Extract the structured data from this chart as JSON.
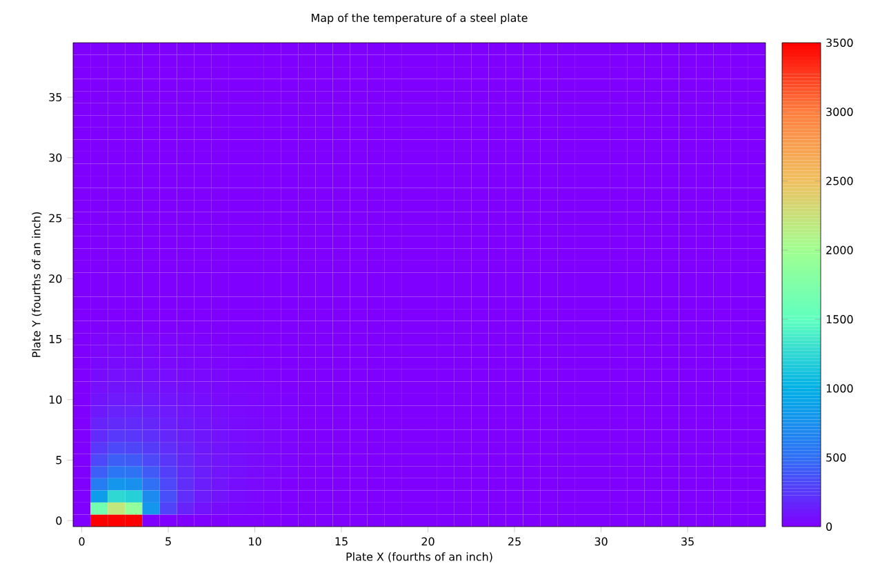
{
  "chart_data": {
    "type": "heatmap",
    "title": "Map of the temperature of a steel plate",
    "xlabel": "Plate X (fourths of an inch)",
    "ylabel": "Plate Y (fourths of an inch)",
    "categories": [
      "0",
      null,
      null,
      null,
      null,
      "5",
      null,
      null,
      null,
      null,
      "10",
      null,
      null,
      null,
      null,
      "15",
      null,
      null,
      null,
      null,
      "20",
      null,
      null,
      null,
      null,
      "25",
      null,
      null,
      null,
      null,
      "30",
      null,
      null,
      null,
      null,
      "35",
      null,
      null,
      null,
      null
    ],
    "y_categories": [
      null,
      null,
      null,
      null,
      "35",
      null,
      null,
      null,
      null,
      "30",
      null,
      null,
      null,
      null,
      "25",
      null,
      null,
      null,
      null,
      "20",
      null,
      null,
      null,
      null,
      "15",
      null,
      null,
      null,
      null,
      "10",
      null,
      null,
      null,
      null,
      "5",
      null,
      null,
      null,
      null,
      "0"
    ],
    "clim": [
      0,
      3500
    ],
    "cticks": [
      0,
      500,
      1000,
      1500,
      2000,
      2500,
      3000,
      3500
    ],
    "cells": [
      [
        0,
        0,
        0,
        0,
        0,
        0,
        0,
        0,
        0,
        0,
        0,
        0,
        0,
        0,
        0,
        0,
        0,
        0,
        0,
        0,
        0,
        0,
        0,
        0,
        0,
        0,
        0,
        0,
        0,
        0,
        0,
        0,
        0,
        0,
        0,
        0,
        0,
        0,
        0,
        0
      ],
      [
        0,
        0,
        0,
        0,
        0,
        0,
        0,
        0,
        0,
        0,
        0,
        0,
        0,
        0,
        0,
        0,
        0,
        0,
        0,
        0,
        0,
        0,
        0,
        0,
        0,
        0,
        0,
        0,
        0,
        0,
        0,
        0,
        0,
        0,
        0,
        0,
        0,
        0,
        0,
        0
      ],
      [
        0,
        0,
        0,
        0,
        0,
        0,
        0,
        0,
        0,
        0,
        0,
        0,
        0,
        0,
        0,
        0,
        0,
        0,
        0,
        0,
        0,
        0,
        0,
        0,
        0,
        0,
        0,
        0,
        0,
        0,
        0,
        0,
        0,
        0,
        0,
        0,
        0,
        0,
        0,
        0
      ],
      [
        0,
        0,
        0,
        0,
        0,
        0,
        0,
        0,
        0,
        0,
        0,
        0,
        0,
        0,
        0,
        0,
        0,
        0,
        0,
        0,
        0,
        0,
        0,
        0,
        0,
        0,
        0,
        0,
        0,
        0,
        0,
        0,
        0,
        0,
        0,
        0,
        0,
        0,
        0,
        0
      ],
      [
        0,
        0,
        0,
        0,
        0,
        0,
        0,
        0,
        0,
        0,
        0,
        0,
        0,
        0,
        0,
        0,
        0,
        0,
        0,
        0,
        0,
        0,
        0,
        0,
        0,
        0,
        0,
        0,
        0,
        0,
        0,
        0,
        0,
        0,
        0,
        0,
        0,
        0,
        0,
        0
      ],
      [
        0,
        0,
        0,
        0,
        0,
        0,
        0,
        0,
        0,
        0,
        0,
        0,
        0,
        0,
        0,
        0,
        0,
        0,
        0,
        0,
        0,
        0,
        0,
        0,
        0,
        0,
        0,
        0,
        0,
        0,
        0,
        0,
        0,
        0,
        0,
        0,
        0,
        0,
        0,
        0
      ],
      [
        0,
        0,
        0,
        0,
        0,
        0,
        0,
        0,
        0,
        0,
        0,
        0,
        0,
        0,
        0,
        0,
        0,
        0,
        0,
        0,
        0,
        0,
        0,
        0,
        0,
        0,
        0,
        0,
        0,
        0,
        0,
        0,
        0,
        0,
        0,
        0,
        0,
        0,
        0,
        0
      ],
      [
        0,
        0,
        0,
        0,
        0,
        0,
        0,
        0,
        0,
        0,
        0,
        0,
        0,
        0,
        0,
        0,
        0,
        0,
        0,
        0,
        0,
        0,
        0,
        0,
        0,
        0,
        0,
        0,
        0,
        0,
        0,
        0,
        0,
        0,
        0,
        0,
        0,
        0,
        0,
        0
      ],
      [
        0,
        0,
        0,
        0,
        0,
        0,
        0,
        0,
        0,
        0,
        0,
        0,
        0,
        0,
        0,
        0,
        0,
        0,
        0,
        0,
        0,
        0,
        0,
        0,
        0,
        0,
        0,
        0,
        0,
        0,
        0,
        0,
        0,
        0,
        0,
        0,
        0,
        0,
        0,
        0
      ],
      [
        0,
        0,
        0,
        0,
        0,
        0,
        0,
        0,
        0,
        0,
        0,
        0,
        0,
        0,
        0,
        0,
        0,
        0,
        0,
        0,
        0,
        0,
        0,
        0,
        0,
        0,
        0,
        0,
        0,
        0,
        0,
        0,
        0,
        0,
        0,
        0,
        0,
        0,
        0,
        0
      ],
      [
        0,
        0,
        0,
        0,
        0,
        0,
        0,
        0,
        0,
        0,
        0,
        0,
        0,
        0,
        0,
        0,
        0,
        0,
        0,
        0,
        0,
        0,
        0,
        0,
        0,
        0,
        0,
        0,
        0,
        0,
        0,
        0,
        0,
        0,
        0,
        0,
        0,
        0,
        0,
        0
      ],
      [
        0,
        0,
        0,
        0,
        0,
        0,
        0,
        0,
        0,
        0,
        0,
        0,
        0,
        0,
        0,
        0,
        0,
        0,
        0,
        0,
        0,
        0,
        0,
        0,
        0,
        0,
        0,
        0,
        0,
        0,
        0,
        0,
        0,
        0,
        0,
        0,
        0,
        0,
        0,
        0
      ],
      [
        0,
        0,
        0,
        0,
        0,
        0,
        0,
        0,
        0,
        0,
        0,
        0,
        0,
        0,
        0,
        0,
        0,
        0,
        0,
        0,
        0,
        0,
        0,
        0,
        0,
        0,
        0,
        0,
        0,
        0,
        0,
        0,
        0,
        0,
        0,
        0,
        0,
        0,
        0,
        0
      ],
      [
        0,
        0,
        0,
        0,
        0,
        0,
        0,
        0,
        0,
        0,
        0,
        0,
        0,
        0,
        0,
        0,
        0,
        0,
        0,
        0,
        0,
        0,
        0,
        0,
        0,
        0,
        0,
        0,
        0,
        0,
        0,
        0,
        0,
        0,
        0,
        0,
        0,
        0,
        0,
        0
      ],
      [
        0,
        0,
        0,
        0,
        0,
        0,
        0,
        0,
        0,
        0,
        0,
        0,
        0,
        0,
        0,
        0,
        0,
        0,
        0,
        0,
        0,
        0,
        0,
        0,
        0,
        0,
        0,
        0,
        0,
        0,
        0,
        0,
        0,
        0,
        0,
        0,
        0,
        0,
        0,
        0
      ],
      [
        0,
        0,
        0,
        0,
        0,
        0,
        0,
        0,
        0,
        0,
        0,
        0,
        0,
        0,
        0,
        0,
        0,
        0,
        0,
        0,
        0,
        0,
        0,
        0,
        0,
        0,
        0,
        0,
        0,
        0,
        0,
        0,
        0,
        0,
        0,
        0,
        0,
        0,
        0,
        0
      ],
      [
        0,
        0,
        0,
        0,
        0,
        0,
        0,
        0,
        0,
        0,
        0,
        0,
        0,
        0,
        0,
        0,
        0,
        0,
        0,
        0,
        0,
        0,
        0,
        0,
        0,
        0,
        0,
        0,
        0,
        0,
        0,
        0,
        0,
        0,
        0,
        0,
        0,
        0,
        0,
        0
      ],
      [
        0,
        0,
        0,
        0,
        0,
        0,
        0,
        0,
        0,
        0,
        0,
        0,
        0,
        0,
        0,
        0,
        0,
        0,
        0,
        0,
        0,
        0,
        0,
        0,
        0,
        0,
        0,
        0,
        0,
        0,
        0,
        0,
        0,
        0,
        0,
        0,
        0,
        0,
        0,
        0
      ],
      [
        0,
        0,
        0,
        0,
        0,
        0,
        0,
        0,
        0,
        0,
        0,
        0,
        0,
        0,
        0,
        0,
        0,
        0,
        0,
        0,
        0,
        0,
        0,
        0,
        0,
        0,
        0,
        0,
        0,
        0,
        0,
        0,
        0,
        0,
        0,
        0,
        0,
        0,
        0,
        0
      ],
      [
        0,
        0,
        0,
        0,
        0,
        0,
        0,
        0,
        0,
        0,
        0,
        0,
        0,
        0,
        0,
        0,
        0,
        0,
        0,
        0,
        0,
        0,
        0,
        0,
        0,
        0,
        0,
        0,
        0,
        0,
        0,
        0,
        0,
        0,
        0,
        0,
        0,
        0,
        0,
        0
      ],
      [
        0,
        0,
        0,
        0,
        0,
        0,
        0,
        0,
        0,
        0,
        0,
        0,
        0,
        0,
        0,
        0,
        0,
        0,
        0,
        0,
        0,
        0,
        0,
        0,
        0,
        0,
        0,
        0,
        0,
        0,
        0,
        0,
        0,
        0,
        0,
        0,
        0,
        0,
        0,
        0
      ],
      [
        0,
        0,
        0,
        0,
        0,
        0,
        0,
        0,
        0,
        0,
        0,
        0,
        0,
        0,
        0,
        0,
        0,
        0,
        0,
        0,
        0,
        0,
        0,
        0,
        0,
        0,
        0,
        0,
        0,
        0,
        0,
        0,
        0,
        0,
        0,
        0,
        0,
        0,
        0,
        0
      ],
      [
        0,
        0,
        0,
        0,
        0,
        0,
        0,
        0,
        0,
        0,
        0,
        0,
        0,
        0,
        0,
        0,
        0,
        0,
        0,
        0,
        0,
        0,
        0,
        0,
        0,
        0,
        0,
        0,
        0,
        0,
        0,
        0,
        0,
        0,
        0,
        0,
        0,
        0,
        0,
        0
      ],
      [
        0,
        0,
        0,
        0,
        0,
        0,
        0,
        0,
        0,
        0,
        0,
        0,
        0,
        0,
        0,
        0,
        0,
        0,
        0,
        0,
        0,
        0,
        0,
        0,
        0,
        0,
        0,
        0,
        0,
        0,
        0,
        0,
        0,
        0,
        0,
        0,
        0,
        0,
        0,
        0
      ],
      [
        0,
        20,
        25,
        25,
        25,
        20,
        15,
        10,
        0,
        0,
        0,
        0,
        0,
        0,
        0,
        0,
        0,
        0,
        0,
        0,
        0,
        0,
        0,
        0,
        0,
        0,
        0,
        0,
        0,
        0,
        0,
        0,
        0,
        0,
        0,
        0,
        0,
        0,
        0,
        0
      ],
      [
        0,
        25,
        35,
        35,
        35,
        30,
        25,
        20,
        15,
        10,
        0,
        0,
        0,
        0,
        0,
        0,
        0,
        0,
        0,
        0,
        0,
        0,
        0,
        0,
        0,
        0,
        0,
        0,
        0,
        0,
        0,
        0,
        0,
        0,
        0,
        0,
        0,
        0,
        0,
        0
      ],
      [
        0,
        35,
        50,
        50,
        45,
        40,
        35,
        25,
        20,
        15,
        10,
        0,
        0,
        0,
        0,
        0,
        0,
        0,
        0,
        0,
        0,
        0,
        0,
        0,
        0,
        0,
        0,
        0,
        0,
        0,
        0,
        0,
        0,
        0,
        0,
        0,
        0,
        0,
        0,
        0
      ],
      [
        0,
        50,
        65,
        65,
        60,
        55,
        45,
        35,
        30,
        20,
        15,
        10,
        0,
        0,
        0,
        0,
        0,
        0,
        0,
        0,
        0,
        0,
        0,
        0,
        0,
        0,
        0,
        0,
        0,
        0,
        0,
        0,
        0,
        0,
        0,
        0,
        0,
        0,
        0,
        0
      ],
      [
        0,
        65,
        85,
        85,
        80,
        70,
        60,
        45,
        35,
        25,
        20,
        15,
        0,
        0,
        0,
        0,
        0,
        0,
        0,
        0,
        0,
        0,
        0,
        0,
        0,
        0,
        0,
        0,
        0,
        0,
        0,
        0,
        0,
        0,
        0,
        0,
        0,
        0,
        0,
        0
      ],
      [
        0,
        85,
        115,
        115,
        105,
        90,
        75,
        60,
        45,
        35,
        25,
        20,
        10,
        0,
        0,
        0,
        0,
        0,
        0,
        0,
        0,
        0,
        0,
        0,
        0,
        0,
        0,
        0,
        0,
        0,
        0,
        0,
        0,
        0,
        0,
        0,
        0,
        0,
        0,
        0
      ],
      [
        0,
        110,
        150,
        150,
        135,
        115,
        90,
        70,
        55,
        40,
        30,
        20,
        15,
        0,
        0,
        0,
        0,
        0,
        0,
        0,
        0,
        0,
        0,
        0,
        0,
        0,
        0,
        0,
        0,
        0,
        0,
        0,
        0,
        0,
        0,
        0,
        0,
        0,
        0,
        0
      ],
      [
        0,
        150,
        190,
        190,
        170,
        140,
        110,
        85,
        65,
        50,
        35,
        25,
        15,
        0,
        0,
        0,
        0,
        0,
        0,
        0,
        0,
        0,
        0,
        0,
        0,
        0,
        0,
        0,
        0,
        0,
        0,
        0,
        0,
        0,
        0,
        0,
        0,
        0,
        0,
        0
      ],
      [
        0,
        190,
        250,
        240,
        210,
        170,
        130,
        100,
        75,
        55,
        40,
        30,
        20,
        0,
        0,
        0,
        0,
        0,
        0,
        0,
        0,
        0,
        0,
        0,
        0,
        0,
        0,
        0,
        0,
        0,
        0,
        0,
        0,
        0,
        0,
        0,
        0,
        0,
        0,
        0
      ],
      [
        0,
        250,
        320,
        310,
        260,
        200,
        150,
        110,
        80,
        60,
        45,
        30,
        20,
        0,
        0,
        0,
        0,
        0,
        0,
        0,
        0,
        0,
        0,
        0,
        0,
        0,
        0,
        0,
        0,
        0,
        0,
        0,
        0,
        0,
        0,
        0,
        0,
        0,
        0,
        0
      ],
      [
        0,
        320,
        420,
        400,
        320,
        240,
        170,
        120,
        90,
        65,
        45,
        30,
        20,
        0,
        0,
        0,
        0,
        0,
        0,
        0,
        0,
        0,
        0,
        0,
        0,
        0,
        0,
        0,
        0,
        0,
        0,
        0,
        0,
        0,
        0,
        0,
        0,
        0,
        0,
        0
      ],
      [
        0,
        420,
        550,
        520,
        400,
        280,
        190,
        130,
        90,
        65,
        45,
        30,
        20,
        0,
        0,
        0,
        0,
        0,
        0,
        0,
        0,
        0,
        0,
        0,
        0,
        0,
        0,
        0,
        0,
        0,
        0,
        0,
        0,
        0,
        0,
        0,
        0,
        0,
        0,
        0
      ],
      [
        0,
        600,
        800,
        750,
        500,
        320,
        200,
        130,
        90,
        60,
        40,
        25,
        0,
        0,
        0,
        0,
        0,
        0,
        0,
        0,
        0,
        0,
        0,
        0,
        0,
        0,
        0,
        0,
        0,
        0,
        0,
        0,
        0,
        0,
        0,
        0,
        0,
        0,
        0,
        0
      ],
      [
        0,
        850,
        1250,
        1200,
        700,
        350,
        200,
        120,
        80,
        50,
        30,
        20,
        0,
        0,
        0,
        0,
        0,
        0,
        0,
        0,
        0,
        0,
        0,
        0,
        0,
        0,
        0,
        0,
        0,
        0,
        0,
        0,
        0,
        0,
        0,
        0,
        0,
        0,
        0,
        0
      ],
      [
        0,
        1650,
        2200,
        1900,
        800,
        300,
        150,
        80,
        50,
        30,
        20,
        0,
        0,
        0,
        0,
        0,
        0,
        0,
        0,
        0,
        0,
        0,
        0,
        0,
        0,
        0,
        0,
        0,
        0,
        0,
        0,
        0,
        0,
        0,
        0,
        0,
        0,
        0,
        0,
        0
      ],
      [
        0,
        3500,
        3500,
        3500,
        0,
        0,
        0,
        0,
        0,
        0,
        0,
        0,
        0,
        0,
        0,
        0,
        0,
        0,
        0,
        0,
        0,
        0,
        0,
        0,
        0,
        0,
        0,
        0,
        0,
        0,
        0,
        0,
        0,
        0,
        0,
        0,
        0,
        0,
        0,
        0
      ]
    ]
  }
}
